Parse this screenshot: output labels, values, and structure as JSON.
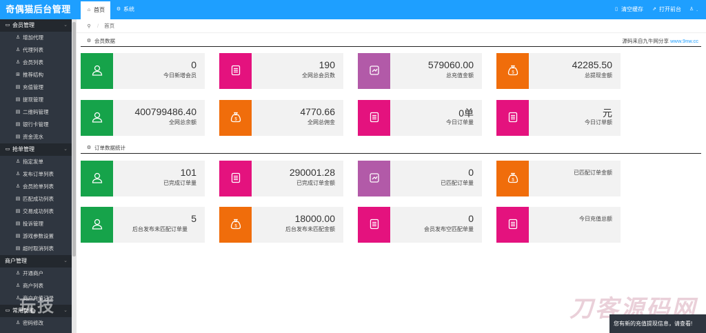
{
  "app": {
    "logo": "奇偶猫后台管理"
  },
  "topbar": {
    "tabs": [
      {
        "label": "首页"
      },
      {
        "label": "系统"
      }
    ],
    "actions": [
      {
        "label": "清空缓存"
      },
      {
        "label": "打开前台"
      },
      {
        "label": "."
      }
    ]
  },
  "sidebar": {
    "groups": [
      {
        "label": "会员管理",
        "items": [
          "增加代理",
          "代理列表",
          "会员列表",
          "推荐结构",
          "充值管理",
          "提现管理",
          "二维码管理",
          "银行卡管理",
          "资金流水"
        ]
      },
      {
        "label": "抢单管理",
        "items": [
          "指定发单",
          "发布订单列表",
          "会员抢单列表",
          "匹配成功列表",
          "交易成功列表",
          "投诉管理",
          "游戏参数设置",
          "超时取消列表"
        ]
      },
      {
        "label": "商户管理",
        "items": [
          "开通商户",
          "商户列表",
          "商户充值记录"
        ]
      },
      {
        "label": "常用功能",
        "items": [
          "密码修改"
        ]
      }
    ]
  },
  "breadcrumb": {
    "home": "首页"
  },
  "sections": {
    "members": {
      "title": "会员数据",
      "source_text": "源码来自九牛网分享",
      "source_link": "www.9nw.cc",
      "cards": [
        {
          "value": "0",
          "label": "今日新增会员",
          "color": "#16a34a",
          "icon": "user-icon"
        },
        {
          "value": "190",
          "label": "全网总会员数",
          "color": "#e4127e",
          "icon": "document-icon"
        },
        {
          "value": "579060.00",
          "label": "总充值金额",
          "color": "#b25aa8",
          "icon": "recharge-icon"
        },
        {
          "value": "42285.50",
          "label": "总提现金额",
          "color": "#f06d0b",
          "icon": "money-bag-icon"
        },
        {
          "value": "400799486.40",
          "label": "全网总余额",
          "color": "#16a34a",
          "icon": "user-icon"
        },
        {
          "value": "4770.66",
          "label": "全网总佣金",
          "color": "#f06d0b",
          "icon": "money-bag-icon"
        },
        {
          "value": "0单",
          "label": "今日订单量",
          "color": "#e4127e",
          "icon": "document-icon"
        },
        {
          "value": "元",
          "label": "今日订单额",
          "color": "#e4127e",
          "icon": "document-icon"
        }
      ]
    },
    "orders": {
      "title": "订单数据统计",
      "cards": [
        {
          "value": "101",
          "label": "已完成订单量",
          "color": "#16a34a",
          "icon": "user-icon"
        },
        {
          "value": "290001.28",
          "label": "已完成订单金额",
          "color": "#e4127e",
          "icon": "document-icon"
        },
        {
          "value": "0",
          "label": "已匹配订单量",
          "color": "#b25aa8",
          "icon": "recharge-icon"
        },
        {
          "value": "",
          "label": "已匹配订单金额",
          "color": "#f06d0b",
          "icon": "money-bag-icon"
        },
        {
          "value": "5",
          "label": "后台发布未匹配订单量",
          "color": "#16a34a",
          "icon": "user-icon"
        },
        {
          "value": "18000.00",
          "label": "后台发布未匹配金额",
          "color": "#f06d0b",
          "icon": "money-bag-icon"
        },
        {
          "value": "0",
          "label": "会员发布空匹配单量",
          "color": "#e4127e",
          "icon": "document-icon"
        },
        {
          "value": "",
          "label": "今日充值总额",
          "color": "#e4127e",
          "icon": "document-icon"
        }
      ]
    }
  },
  "watermarks": {
    "left": "玩技",
    "right": "刀客源码网"
  },
  "toast": {
    "text": "您有新的充值提现信息，请查看!"
  }
}
